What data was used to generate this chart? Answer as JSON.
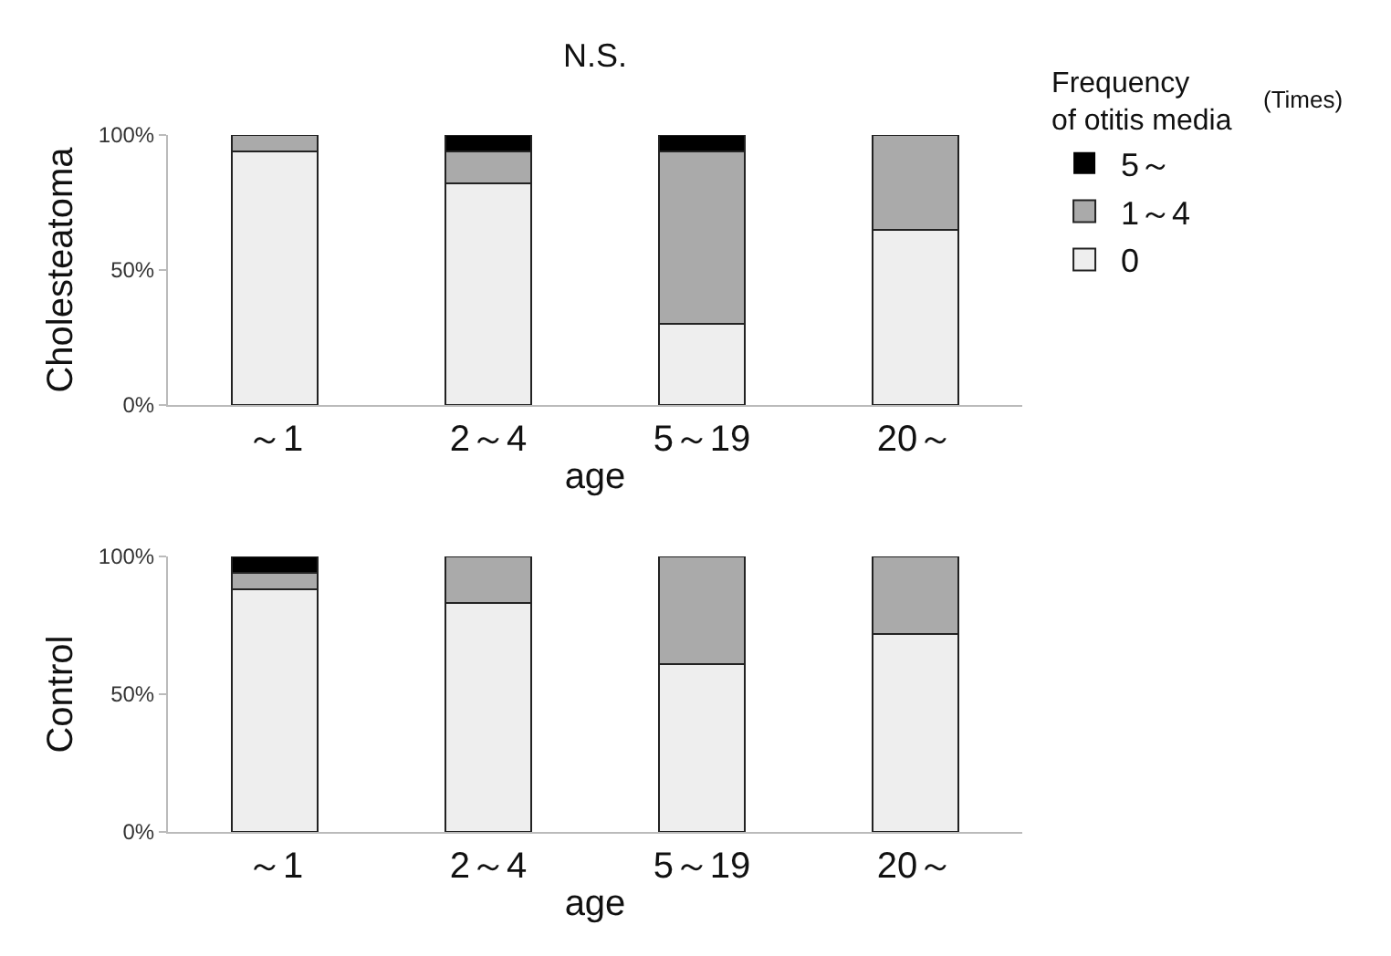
{
  "chart_data": [
    {
      "type": "bar",
      "title": "N.S.",
      "xlabel": "age",
      "ylabel": "Cholesteatoma",
      "legend_title": "Frequency of otitis media",
      "annotations": [
        "(Times)"
      ],
      "categories": [
        "～1",
        "2～4",
        "5～19",
        "20～"
      ],
      "stacked": true,
      "grid": false,
      "legend": "top right",
      "ylim": [
        0,
        100
      ],
      "yticks": [
        {
          "value": 0,
          "label": "0%"
        },
        {
          "value": 50,
          "label": "50%"
        },
        {
          "value": 100,
          "label": "100%"
        }
      ],
      "series": [
        {
          "name": "0",
          "color": "#eeeeee",
          "values": [
            94,
            82,
            30,
            65
          ]
        },
        {
          "name": "1～4",
          "color": "#aaaaaa",
          "values": [
            6,
            12,
            64,
            35
          ]
        },
        {
          "name": "5～",
          "color": "#000000",
          "values": [
            0,
            6,
            6,
            0
          ]
        }
      ]
    },
    {
      "type": "bar",
      "xlabel": "age",
      "ylabel": "Control",
      "categories": [
        "～1",
        "2～4",
        "5～19",
        "20～"
      ],
      "stacked": true,
      "grid": false,
      "legend": false,
      "ylim": [
        0,
        100
      ],
      "yticks": [
        {
          "value": 0,
          "label": "0%"
        },
        {
          "value": 50,
          "label": "50%"
        },
        {
          "value": 100,
          "label": "100%"
        }
      ],
      "series": [
        {
          "color": "#eeeeee",
          "values": [
            88,
            83,
            61,
            72
          ]
        },
        {
          "color": "#aaaaaa",
          "values": [
            6,
            17,
            39,
            28
          ]
        },
        {
          "color": "#000000",
          "values": [
            6,
            0,
            0,
            0
          ]
        }
      ]
    }
  ]
}
